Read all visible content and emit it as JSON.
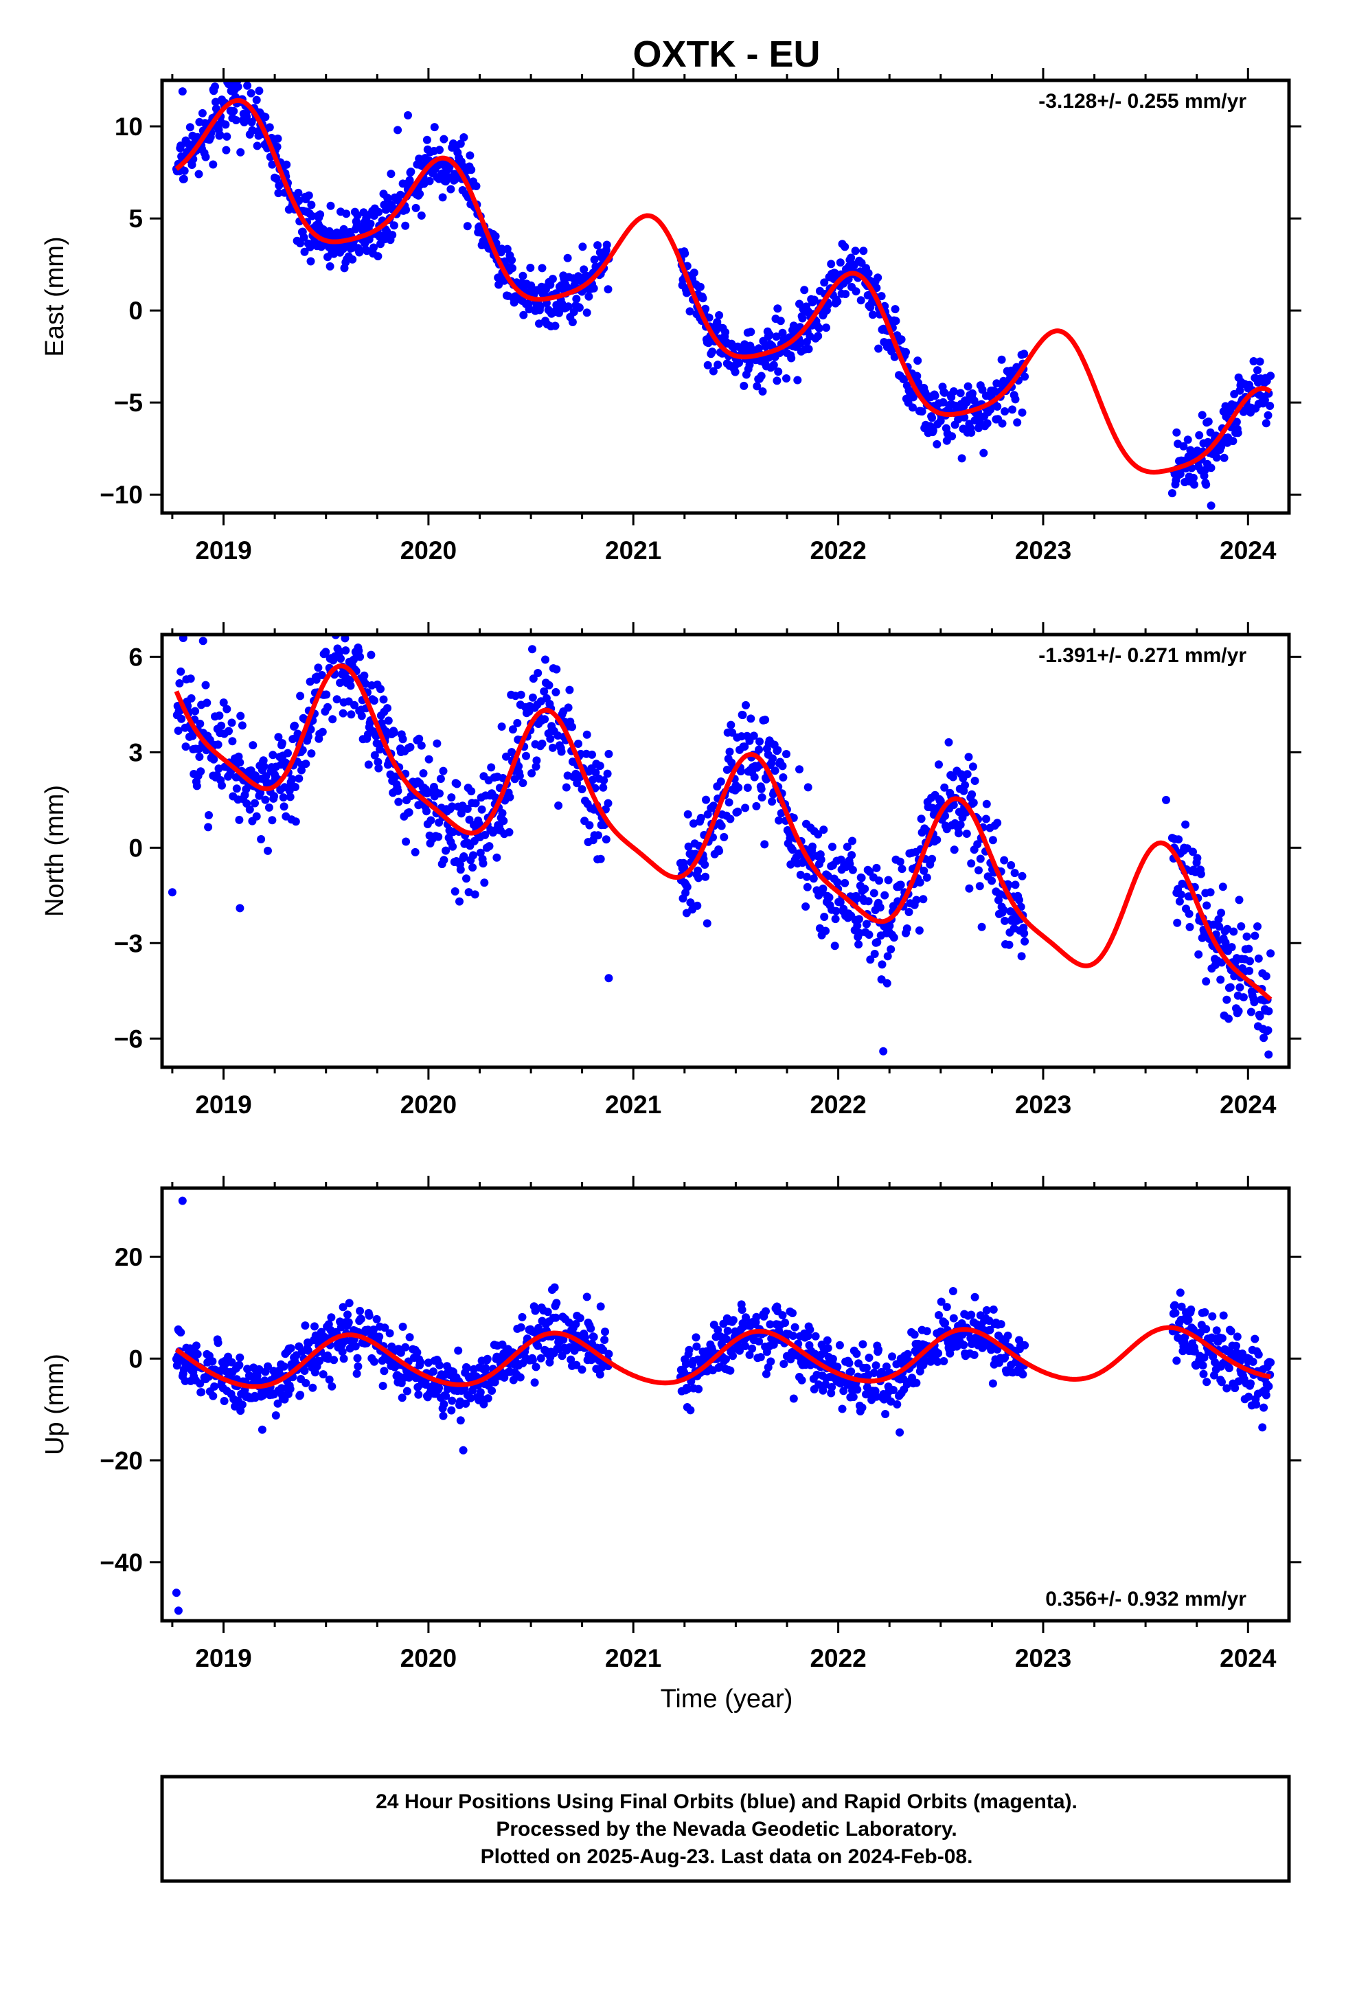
{
  "title": "OXTK - EU",
  "x_axis_label": "Time (year)",
  "caption_lines": [
    "24 Hour Positions Using Final Orbits (blue) and Rapid Orbits (magenta).",
    "Processed by the Nevada Geodetic Laboratory.",
    "Plotted on 2025-Aug-23. Last data on 2024-Feb-08."
  ],
  "colors": {
    "final_orbits": "#0000ff",
    "fit": "#ff0000",
    "frame": "#000000"
  },
  "chart_data": [
    {
      "type": "scatter",
      "component": "East",
      "ylabel": "East (mm)",
      "xlim": [
        2018.7,
        2024.2
      ],
      "ylim": [
        -11.0,
        12.5
      ],
      "yticks": [
        -10,
        -5,
        0,
        5,
        10
      ],
      "ytick_labels": [
        "−10",
        "−5",
        "0",
        "5",
        "10"
      ],
      "xticks": [
        2019,
        2020,
        2021,
        2022,
        2023,
        2024
      ],
      "xtick_labels": [
        "2019",
        "2020",
        "2021",
        "2022",
        "2023",
        "2024"
      ],
      "rate": "-3.128+/- 0.255 mm/yr",
      "rate_position": "top-right",
      "model": {
        "ref_year": 2021.0,
        "intercept": 1.8,
        "velocity": -3.128,
        "annual": [
          1.2,
          2.8
        ],
        "semiannual": [
          0.6,
          0.1
        ]
      },
      "data_segments": [
        [
          2018.77,
          2020.88
        ],
        [
          2021.23,
          2022.91
        ],
        [
          2023.63,
          2024.11
        ]
      ],
      "scatter_sd": 0.8,
      "extreme_points": [
        [
          2018.8,
          11.9
        ],
        [
          2018.95,
          12.0
        ],
        [
          2019.9,
          10.6
        ],
        [
          2019.85,
          9.8
        ],
        [
          2023.82,
          -10.6
        ]
      ]
    },
    {
      "type": "scatter",
      "component": "North",
      "ylabel": "North (mm)",
      "xlim": [
        2018.7,
        2024.2
      ],
      "ylim": [
        -6.9,
        6.7
      ],
      "yticks": [
        -6,
        -3,
        0,
        3,
        6
      ],
      "ytick_labels": [
        "−6",
        "−3",
        "0",
        "3",
        "6"
      ],
      "xticks": [
        2019,
        2020,
        2021,
        2022,
        2023,
        2024
      ],
      "xtick_labels": [
        "2019",
        "2020",
        "2021",
        "2022",
        "2023",
        "2024"
      ],
      "rate": "-1.391+/- 0.271 mm/yr",
      "rate_position": "top-right",
      "model": {
        "ref_year": 2021.0,
        "intercept": 1.2,
        "velocity": -1.391,
        "annual": [
          -1.3,
          -1.6
        ],
        "semiannual": [
          0.35,
          0.4
        ]
      },
      "data_segments": [
        [
          2018.77,
          2020.88
        ],
        [
          2021.23,
          2022.91
        ],
        [
          2023.63,
          2024.11
        ]
      ],
      "scatter_sd": 0.85,
      "extreme_points": [
        [
          2018.9,
          6.5
        ],
        [
          2018.75,
          -1.4
        ],
        [
          2019.08,
          -1.9
        ],
        [
          2020.88,
          -4.1
        ],
        [
          2022.22,
          -6.4
        ],
        [
          2024.1,
          -6.5
        ],
        [
          2023.6,
          1.5
        ]
      ]
    },
    {
      "type": "scatter",
      "component": "Up",
      "ylabel": "Up (mm)",
      "xlim": [
        2018.7,
        2024.2
      ],
      "ylim": [
        -51.5,
        33.5
      ],
      "yticks": [
        -40,
        -20,
        0,
        20
      ],
      "ytick_labels": [
        "−40",
        "−20",
        "0",
        "20"
      ],
      "xticks": [
        2019,
        2020,
        2021,
        2022,
        2023,
        2024
      ],
      "xtick_labels": [
        "2019",
        "2020",
        "2021",
        "2022",
        "2023",
        "2024"
      ],
      "rate": "0.356+/- 0.932 mm/yr",
      "rate_position": "bottom-right",
      "model": {
        "ref_year": 2021.0,
        "intercept": -0.2,
        "velocity": 0.356,
        "annual": [
          -3.6,
          -3.4
        ],
        "semiannual": [
          0.4,
          0.3
        ]
      },
      "data_segments": [
        [
          2018.77,
          2020.88
        ],
        [
          2021.23,
          2022.91
        ],
        [
          2023.63,
          2024.11
        ]
      ],
      "scatter_sd": 3.0,
      "extreme_points": [
        [
          2018.8,
          31.0
        ],
        [
          2018.77,
          -46.0
        ],
        [
          2018.78,
          -49.5
        ],
        [
          2020.17,
          -18.0
        ],
        [
          2022.3,
          -14.5
        ],
        [
          2024.07,
          -13.5
        ]
      ]
    }
  ]
}
